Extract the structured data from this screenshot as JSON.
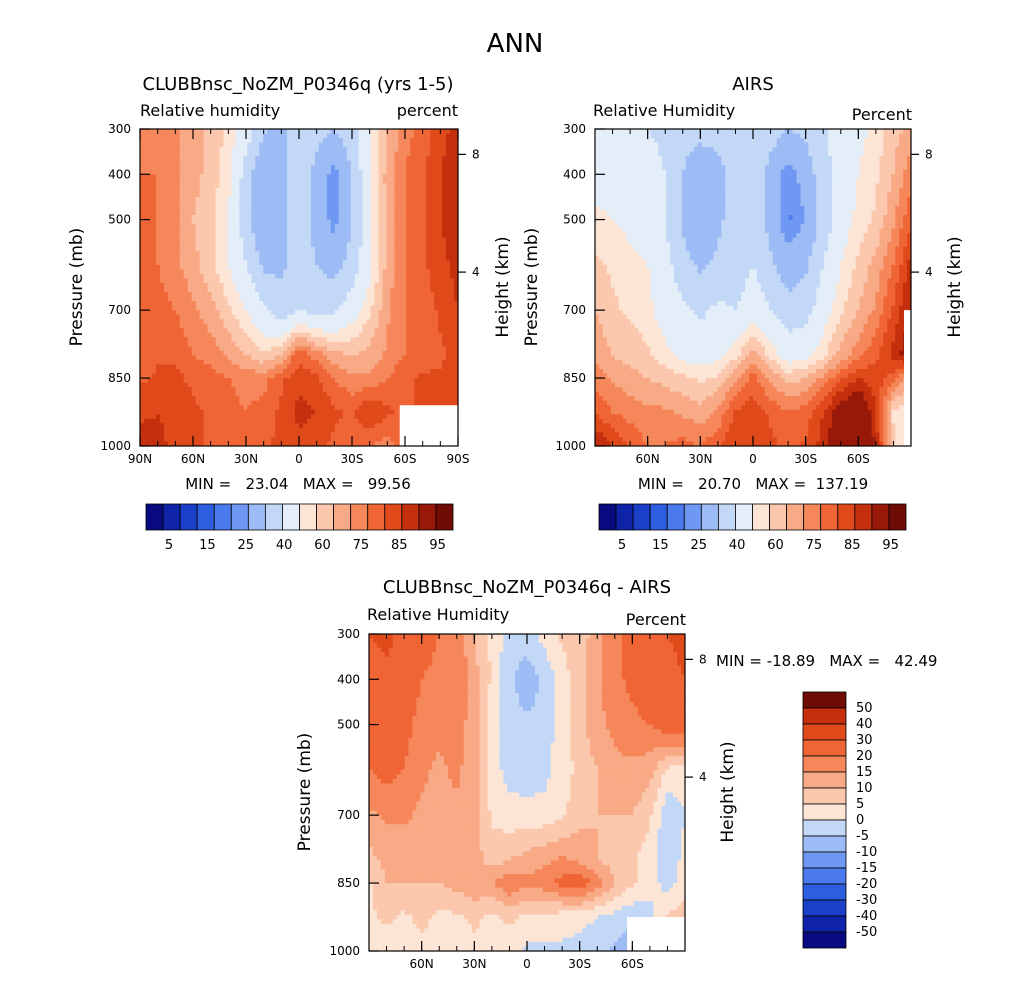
{
  "figure_title": "ANN",
  "chart_data": [
    {
      "type": "heatmap",
      "id": "model",
      "title": "CLUBBnsc_NoZM_P0346q (yrs 1-5)",
      "left_label": "Relative humidity",
      "right_label": "percent",
      "ylabel": "Pressure (mb)",
      "y2label": "Height (km)",
      "xlabel": "",
      "xlim": [
        90,
        -90
      ],
      "ylim": [
        1000,
        300
      ],
      "x_ticks": [
        90,
        60,
        30,
        0,
        -30,
        -60,
        -90
      ],
      "x_tick_labels": [
        "90N",
        "60N",
        "30N",
        "0",
        "30S",
        "60S",
        "90S"
      ],
      "y_ticks": [
        300,
        400,
        500,
        700,
        850,
        1000
      ],
      "y_tick_labels": [
        "300",
        "400",
        "500",
        "700",
        "850",
        "1000"
      ],
      "y2_ticks": [
        {
          "km": 8,
          "p": 356
        },
        {
          "km": 4,
          "p": 616
        }
      ],
      "y2_tick_labels": [
        "8",
        "4"
      ],
      "stats": "MIN =   23.04   MAX =   99.56",
      "min": 23.04,
      "max": 99.56,
      "field": {
        "lat": [
          90,
          80,
          70,
          60,
          50,
          40,
          30,
          20,
          10,
          0,
          -10,
          -20,
          -30,
          -40,
          -50,
          -60,
          -70,
          -80,
          -90
        ],
        "lev": [
          300,
          400,
          500,
          600,
          700,
          800,
          850,
          925,
          1000
        ],
        "values": [
          [
            78,
            80,
            76,
            72,
            68,
            64,
            56,
            42,
            36,
            50,
            44,
            40,
            46,
            60,
            70,
            78,
            82,
            88,
            92
          ],
          [
            80,
            80,
            76,
            72,
            68,
            62,
            46,
            30,
            36,
            50,
            36,
            27,
            40,
            60,
            72,
            80,
            84,
            90,
            94
          ],
          [
            80,
            80,
            76,
            70,
            66,
            60,
            44,
            30,
            36,
            48,
            36,
            27,
            40,
            58,
            72,
            80,
            84,
            90,
            94
          ],
          [
            80,
            80,
            76,
            72,
            66,
            60,
            50,
            38,
            38,
            44,
            40,
            36,
            44,
            58,
            72,
            80,
            84,
            88,
            92
          ],
          [
            80,
            82,
            80,
            76,
            72,
            66,
            60,
            52,
            44,
            50,
            46,
            48,
            56,
            64,
            74,
            80,
            82,
            86,
            90
          ],
          [
            82,
            84,
            84,
            80,
            78,
            74,
            70,
            66,
            70,
            84,
            78,
            72,
            70,
            72,
            76,
            80,
            82,
            84,
            86
          ],
          [
            84,
            86,
            86,
            84,
            82,
            80,
            78,
            78,
            84,
            88,
            86,
            80,
            76,
            76,
            80,
            84,
            86,
            86,
            88
          ],
          [
            88,
            90,
            88,
            86,
            84,
            82,
            80,
            82,
            86,
            92,
            90,
            86,
            84,
            90,
            86,
            84,
            86,
            88,
            90
          ],
          [
            95,
            92,
            88,
            86,
            84,
            82,
            80,
            82,
            88,
            88,
            86,
            84,
            82,
            80,
            78,
            82,
            84,
            88,
            90
          ]
        ],
        "missing_region": {
          "lat": [
            -57,
            -90
          ],
          "lev": [
            910,
            1000
          ]
        }
      },
      "levels": [
        5,
        10,
        15,
        20,
        25,
        30,
        40,
        50,
        60,
        65,
        70,
        75,
        80,
        85,
        90,
        95
      ],
      "colors": [
        "#0a0a80",
        "#0f23a8",
        "#1a3fc8",
        "#2d5ee0",
        "#4a7aee",
        "#6e98f2",
        "#9dbbf5",
        "#c3d8f7",
        "#e3eef9",
        "#fde5d6",
        "#fbc8ae",
        "#f8a985",
        "#f5875a",
        "#f06535",
        "#e04a1a",
        "#c42f0c",
        "#98180a",
        "#6e0c05"
      ],
      "colorbar_tick_labels": [
        "5",
        "15",
        "25",
        "40",
        "60",
        "75",
        "85",
        "95"
      ]
    },
    {
      "type": "heatmap",
      "id": "obs",
      "title": "AIRS",
      "left_label": "Relative Humidity",
      "right_label": "Percent",
      "ylabel": "Pressure (mb)",
      "y2label": "Height (km)",
      "xlabel": "",
      "xlim": [
        90,
        -90
      ],
      "ylim": [
        1000,
        300
      ],
      "x_ticks": [
        60,
        30,
        0,
        -30,
        -60
      ],
      "x_tick_labels": [
        "60N",
        "30N",
        "0",
        "30S",
        "60S"
      ],
      "y_ticks": [
        300,
        400,
        500,
        700,
        850,
        1000
      ],
      "y_tick_labels": [
        "300",
        "400",
        "500",
        "700",
        "850",
        "1000"
      ],
      "y2_ticks": [
        {
          "km": 8,
          "p": 356
        },
        {
          "km": 4,
          "p": 616
        }
      ],
      "y2_tick_labels": [
        "8",
        "4"
      ],
      "stats": "MIN =   20.70   MAX =  137.19",
      "min": 20.7,
      "max": 137.19,
      "field": {
        "lat": [
          90,
          80,
          70,
          60,
          50,
          40,
          30,
          20,
          10,
          0,
          -10,
          -20,
          -30,
          -40,
          -50,
          -60,
          -70,
          -80,
          -90
        ],
        "lev": [
          300,
          400,
          500,
          600,
          700,
          800,
          850,
          925,
          1000
        ],
        "values": [
          [
            52,
            52,
            52,
            50,
            48,
            44,
            44,
            44,
            48,
            50,
            45,
            40,
            42,
            48,
            55,
            58,
            62,
            68,
            72
          ],
          [
            56,
            56,
            56,
            54,
            50,
            40,
            32,
            36,
            44,
            48,
            36,
            26,
            34,
            46,
            55,
            60,
            64,
            70,
            78
          ],
          [
            62,
            60,
            58,
            56,
            50,
            38,
            30,
            38,
            44,
            46,
            36,
            24,
            30,
            44,
            56,
            62,
            66,
            74,
            84
          ],
          [
            66,
            64,
            62,
            60,
            54,
            44,
            38,
            42,
            44,
            50,
            42,
            34,
            38,
            50,
            60,
            66,
            72,
            80,
            92
          ],
          [
            70,
            66,
            64,
            62,
            56,
            52,
            48,
            52,
            50,
            56,
            50,
            44,
            46,
            56,
            64,
            70,
            76,
            86,
            96
          ],
          [
            74,
            70,
            68,
            66,
            62,
            58,
            56,
            58,
            64,
            72,
            64,
            56,
            58,
            64,
            72,
            78,
            84,
            92,
            100
          ],
          [
            78,
            74,
            72,
            70,
            68,
            66,
            64,
            66,
            74,
            82,
            74,
            68,
            70,
            76,
            84,
            90,
            88,
            82,
            70
          ],
          [
            84,
            80,
            78,
            76,
            76,
            74,
            72,
            76,
            86,
            88,
            84,
            80,
            82,
            90,
            100,
            104,
            90,
            64,
            62
          ],
          [
            96,
            90,
            84,
            80,
            80,
            82,
            80,
            84,
            90,
            88,
            86,
            84,
            86,
            92,
            104,
            110,
            94,
            66,
            60
          ]
        ],
        "missing_region": {
          "lat": [
            -86,
            -90
          ],
          "lev": [
            700,
            1000
          ]
        }
      },
      "levels": [
        5,
        10,
        15,
        20,
        25,
        30,
        40,
        50,
        60,
        65,
        70,
        75,
        80,
        85,
        90,
        95
      ],
      "colors": [
        "#0a0a80",
        "#0f23a8",
        "#1a3fc8",
        "#2d5ee0",
        "#4a7aee",
        "#6e98f2",
        "#9dbbf5",
        "#c3d8f7",
        "#e3eef9",
        "#fde5d6",
        "#fbc8ae",
        "#f8a985",
        "#f5875a",
        "#f06535",
        "#e04a1a",
        "#c42f0c",
        "#98180a",
        "#6e0c05"
      ],
      "colorbar_tick_labels": [
        "5",
        "15",
        "25",
        "40",
        "60",
        "75",
        "85",
        "95"
      ]
    },
    {
      "type": "heatmap",
      "id": "diff",
      "title": "CLUBBnsc_NoZM_P0346q - AIRS",
      "left_label": "Relative Humidity",
      "right_label": "Percent",
      "ylabel": "Pressure (mb)",
      "y2label": "Height (km)",
      "xlabel": "",
      "xlim": [
        90,
        -90
      ],
      "ylim": [
        1000,
        300
      ],
      "x_ticks": [
        60,
        30,
        0,
        -30,
        -60
      ],
      "x_tick_labels": [
        "60N",
        "30N",
        "0",
        "30S",
        "60S"
      ],
      "y_ticks": [
        300,
        400,
        500,
        700,
        850,
        1000
      ],
      "y_tick_labels": [
        "300",
        "400",
        "500",
        "700",
        "850",
        "1000"
      ],
      "y2_ticks": [
        {
          "km": 8,
          "p": 356
        },
        {
          "km": 4,
          "p": 616
        }
      ],
      "y2_tick_labels": [
        "8",
        "4"
      ],
      "stats": "MIN = -18.89   MAX =   42.49",
      "min": -18.89,
      "max": 42.49,
      "field": {
        "lat": [
          90,
          80,
          70,
          60,
          50,
          40,
          30,
          20,
          10,
          0,
          -10,
          -20,
          -30,
          -40,
          -50,
          -60,
          -70,
          -80,
          -90
        ],
        "lev": [
          300,
          400,
          500,
          600,
          700,
          800,
          850,
          925,
          1000
        ],
        "values": [
          [
            30,
            32,
            28,
            24,
            20,
            18,
            10,
            4,
            -3,
            -2,
            2,
            6,
            6,
            14,
            18,
            22,
            26,
            30,
            32
          ],
          [
            26,
            28,
            24,
            20,
            18,
            20,
            12,
            4,
            -4,
            -8,
            -4,
            3,
            8,
            14,
            18,
            22,
            26,
            28,
            30
          ],
          [
            24,
            26,
            22,
            18,
            16,
            18,
            12,
            2,
            -3,
            -4,
            -3,
            3,
            8,
            14,
            16,
            18,
            20,
            24,
            26
          ],
          [
            20,
            22,
            20,
            16,
            14,
            16,
            12,
            2,
            -2,
            -3,
            -2,
            3,
            6,
            10,
            14,
            14,
            12,
            4,
            2
          ],
          [
            14,
            16,
            16,
            14,
            14,
            14,
            12,
            4,
            2,
            2,
            2,
            4,
            8,
            10,
            10,
            10,
            6,
            -4,
            0
          ],
          [
            8,
            12,
            12,
            12,
            12,
            12,
            12,
            8,
            10,
            12,
            14,
            16,
            14,
            10,
            8,
            6,
            2,
            -4,
            2
          ],
          [
            4,
            10,
            10,
            10,
            10,
            12,
            14,
            14,
            20,
            16,
            18,
            22,
            24,
            18,
            10,
            6,
            2,
            -2,
            2
          ],
          [
            4,
            6,
            4,
            6,
            4,
            4,
            6,
            4,
            6,
            4,
            4,
            2,
            2,
            0,
            -2,
            -4,
            -2,
            6,
            8
          ],
          [
            2,
            2,
            4,
            4,
            4,
            2,
            4,
            2,
            2,
            -1,
            -2,
            -1,
            -2,
            -4,
            -6,
            -8,
            -4,
            6,
            8
          ]
        ],
        "missing_region": {
          "lat": [
            -57,
            -90
          ],
          "lev": [
            925,
            1000
          ]
        }
      },
      "levels": [
        -50,
        -40,
        -30,
        -20,
        -15,
        -10,
        -5,
        0,
        5,
        10,
        15,
        20,
        30,
        40,
        50
      ],
      "colors": [
        "#0a0a80",
        "#0f23a8",
        "#1a3fc8",
        "#2d5ee0",
        "#4a7aee",
        "#6e98f2",
        "#9dbbf5",
        "#c3d8f7",
        "#fde5d6",
        "#fbc8ae",
        "#f8a985",
        "#f5875a",
        "#f06535",
        "#e04a1a",
        "#c42f0c",
        "#6e0c05"
      ],
      "colorbar_tick_labels": [
        "50",
        "40",
        "30",
        "20",
        "15",
        "10",
        "5",
        "0",
        "-5",
        "-10",
        "-15",
        "-20",
        "-30",
        "-40",
        "-50"
      ]
    }
  ]
}
